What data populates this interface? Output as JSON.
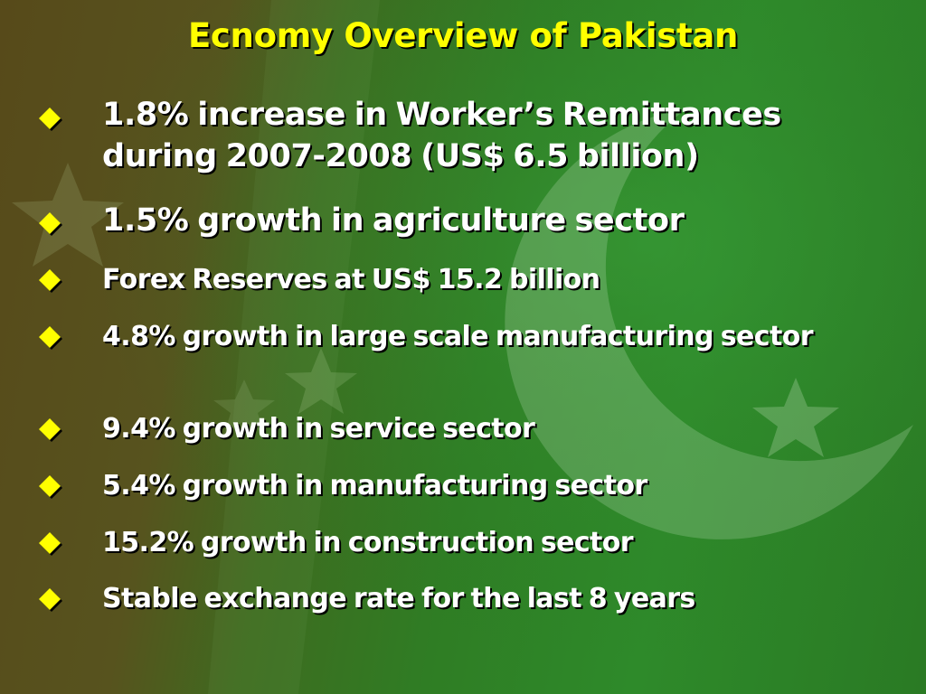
{
  "slide": {
    "title": "Ecnomy Overview of Pakistan",
    "bullet_icon": "yellow-diamond-icon",
    "colors": {
      "title": "#ffff00",
      "text": "#ffffff",
      "bullet": "#ffff00",
      "background_brown": "#574a1a",
      "background_green": "#2e8a2a"
    },
    "bullets": [
      {
        "text": "1.8% increase in Worker’s Remittances during 2007-2008 (US$ 6.5 billion)"
      },
      {
        "text": "1.5% growth in agriculture sector"
      },
      {
        "text": "Forex Reserves at US$ 15.2 billion"
      },
      {
        "text": "4.8% growth in large scale manufacturing sector"
      },
      {
        "text": "9.4% growth in service sector"
      },
      {
        "text": "5.4% growth in manufacturing sector"
      },
      {
        "text": "15.2% growth in construction sector"
      },
      {
        "text": "Stable exchange rate for the last 8 years"
      }
    ]
  }
}
